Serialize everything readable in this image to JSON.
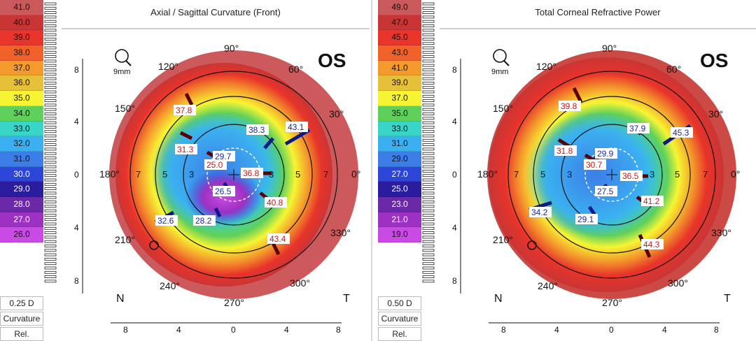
{
  "left_scale": {
    "values": [
      "41.0",
      "40.0",
      "39.0",
      "38.0",
      "37.0",
      "36.0",
      "35.0",
      "34.0",
      "33.0",
      "32.0",
      "31.0",
      "30.0",
      "29.0",
      "28.0",
      "27.0",
      "26.0"
    ],
    "colors": [
      "#c9595b",
      "#c93535",
      "#e8342a",
      "#f0622a",
      "#f49a2c",
      "#e7c03a",
      "#f7f533",
      "#5fd05a",
      "#38d6c8",
      "#3bb0f0",
      "#3d7de8",
      "#2d46d8",
      "#2a1c9e",
      "#6a2aa8",
      "#9d31c4",
      "#c94ae4"
    ],
    "step": "0.25 D",
    "mode": "Curvature",
    "rel": "Rel."
  },
  "right_scale": {
    "values": [
      "49.0",
      "47.0",
      "45.0",
      "43.0",
      "41.0",
      "39.0",
      "37.0",
      "35.0",
      "33.0",
      "31.0",
      "29.0",
      "27.0",
      "25.0",
      "23.0",
      "21.0",
      "19.0"
    ],
    "colors": [
      "#c9595b",
      "#c93535",
      "#e8342a",
      "#f0622a",
      "#f49a2c",
      "#e7c03a",
      "#f7f533",
      "#5fd05a",
      "#38d6c8",
      "#3bb0f0",
      "#3d7de8",
      "#2d46d8",
      "#2a1c9e",
      "#6a2aa8",
      "#9d31c4",
      "#c94ae4"
    ],
    "step": "0.50 D",
    "mode": "Curvature",
    "rel": "Rel."
  },
  "left_map": {
    "title": "Axial / Sagittal Curvature (Front)",
    "eye": "OS",
    "zoom": "9mm",
    "nasal": "N",
    "temporal": "T",
    "angle_labels": {
      "a90": "90°",
      "a60": "60°",
      "a30": "30°",
      "a0": "0°",
      "a330": "330°",
      "a300": "300°",
      "a270": "270°",
      "a240": "240°",
      "a210": "210°",
      "a180": "180°",
      "a150": "150°",
      "a120": "120°"
    },
    "ring_labels": {
      "l7": "7",
      "l5": "5",
      "l3": "3",
      "r3": "3",
      "r5": "5",
      "r7": "7"
    },
    "y_ticks": [
      "8",
      "4",
      "0",
      "4",
      "8"
    ],
    "x_ticks": [
      "8",
      "4",
      "0",
      "4",
      "8"
    ],
    "readings": {
      "r1": "37.8",
      "r2": "38.3",
      "r3": "43.1",
      "r4": "31.3",
      "r5": "29.7",
      "r6": "25.0",
      "r7": "36.8",
      "r8": "26.5",
      "r9": "40.8",
      "r10": "32.6",
      "r11": "28.2",
      "r12": "43.4"
    }
  },
  "right_map": {
    "title": "Total Corneal Refractive Power",
    "eye": "OS",
    "zoom": "9mm",
    "nasal": "N",
    "temporal": "T",
    "angle_labels": {
      "a90": "90°",
      "a60": "60°",
      "a30": "30°",
      "a0": "0°",
      "a330": "330°",
      "a300": "300°",
      "a270": "270°",
      "a240": "240°",
      "a210": "210°",
      "a180": "180°",
      "a150": "150°",
      "a120": "120°"
    },
    "ring_labels": {
      "l7": "7",
      "l5": "5",
      "l3": "3",
      "r3": "3",
      "r5": "5",
      "r7": "7"
    },
    "y_ticks": [
      "8",
      "4",
      "0",
      "4",
      "8"
    ],
    "x_ticks": [
      "8",
      "4",
      "0",
      "4",
      "8"
    ],
    "readings": {
      "r1": "39.8",
      "r2": "37.9",
      "r3": "45.3",
      "r4": "31.8",
      "r5": "29.9",
      "r6": "30.7",
      "r7": "36.5",
      "r8": "27.5",
      "r9": "41.2",
      "r10": "34.2",
      "r11": "29.1",
      "r12": "44.3"
    }
  }
}
